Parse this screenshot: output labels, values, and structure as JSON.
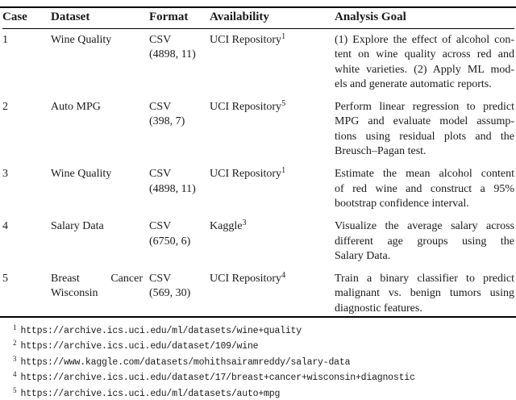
{
  "table": {
    "headers": [
      "Case",
      "Dataset",
      "Format",
      "Availability",
      "Analysis Goal"
    ],
    "rows": [
      {
        "case": "1",
        "dataset_lines": [
          "Wine Quality"
        ],
        "format_lines": [
          "CSV",
          "(4898, 11)"
        ],
        "availability": {
          "text": "UCI Repository",
          "sup": "1"
        },
        "goal_lines": [
          "(1) Explore the effect of alcohol con-",
          "tent on wine quality across red and",
          "white varieties. (2) Apply ML mod-",
          "els and generate automatic reports."
        ]
      },
      {
        "case": "2",
        "dataset_lines": [
          "Auto MPG"
        ],
        "format_lines": [
          "CSV",
          "(398, 7)"
        ],
        "availability": {
          "text": "UCI Repository",
          "sup": "5"
        },
        "goal_lines": [
          "Perform linear regression to predict",
          "MPG and evaluate model assump-",
          "tions using residual plots and the",
          "Breusch–Pagan test."
        ]
      },
      {
        "case": "3",
        "dataset_lines": [
          "Wine Quality"
        ],
        "format_lines": [
          "CSV",
          "(4898, 11)"
        ],
        "availability": {
          "text": "UCI Repository",
          "sup": "1"
        },
        "goal_lines": [
          "Estimate the mean alcohol content",
          "of red wine and construct a 95%",
          "bootstrap confidence interval."
        ]
      },
      {
        "case": "4",
        "dataset_lines": [
          "Salary Data"
        ],
        "format_lines": [
          "CSV",
          "(6750, 6)"
        ],
        "availability": {
          "text": "Kaggle",
          "sup": "3"
        },
        "goal_lines": [
          "Visualize the average salary across",
          "different age groups using the",
          "Salary Data."
        ]
      },
      {
        "case": "5",
        "dataset_lines": [
          "Breast Cancer",
          "Wisconsin"
        ],
        "format_lines": [
          "CSV",
          "(569, 30)"
        ],
        "availability": {
          "text": "UCI Repository",
          "sup": "4"
        },
        "goal_lines": [
          "Train a binary classifier to predict",
          "malignant vs. benign tumors using",
          "diagnostic features."
        ]
      }
    ]
  },
  "footnotes": [
    {
      "sup": "1",
      "url": "https://archive.ics.uci.edu/ml/datasets/wine+quality"
    },
    {
      "sup": "2",
      "url": "https://archive.ics.uci.edu/dataset/109/wine"
    },
    {
      "sup": "3",
      "url": "https://www.kaggle.com/datasets/mohithsairamreddy/salary-data"
    },
    {
      "sup": "4",
      "url": "https://archive.ics.uci.edu/dataset/17/breast+cancer+wisconsin+diagnostic"
    },
    {
      "sup": "5",
      "url": "https://archive.ics.uci.edu/ml/datasets/auto+mpg"
    }
  ]
}
